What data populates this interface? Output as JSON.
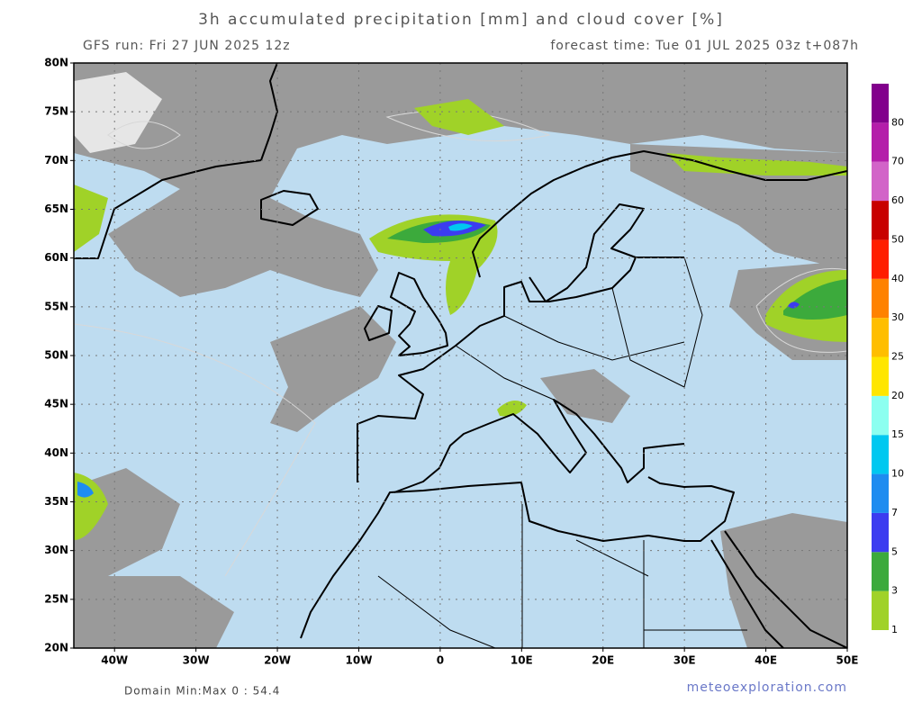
{
  "header": {
    "title": "3h accumulated precipitation [mm] and cloud cover [%]",
    "run": "GFS run: Fri 27 JUN 2025 12z",
    "forecast": "forecast time: Tue 01 JUL 2025 03z  t+087h"
  },
  "map": {
    "lat_labels": [
      "80N",
      "75N",
      "70N",
      "65N",
      "60N",
      "55N",
      "50N",
      "45N",
      "40N",
      "35N",
      "30N",
      "25N",
      "20N"
    ],
    "lon_labels": [
      "40W",
      "30W",
      "20W",
      "10W",
      "0",
      "10E",
      "20E",
      "30E",
      "40E",
      "50E"
    ]
  },
  "colorbar": {
    "levels": [
      1,
      3,
      5,
      7,
      10,
      15,
      20,
      25,
      30,
      40,
      50,
      60,
      70,
      80
    ],
    "colors": [
      "#a0d228",
      "#3caa3c",
      "#3c3cf0",
      "#1e8cf0",
      "#00c8f0",
      "#8cfff0",
      "#ffe600",
      "#ffbe00",
      "#ff8200",
      "#ff1e00",
      "#c80000",
      "#d264c8",
      "#b41eaa",
      "#82008c"
    ]
  },
  "footer": {
    "minmax": "Domain Min:Max 0 : 54.4",
    "credit": "meteoexploration.com"
  }
}
